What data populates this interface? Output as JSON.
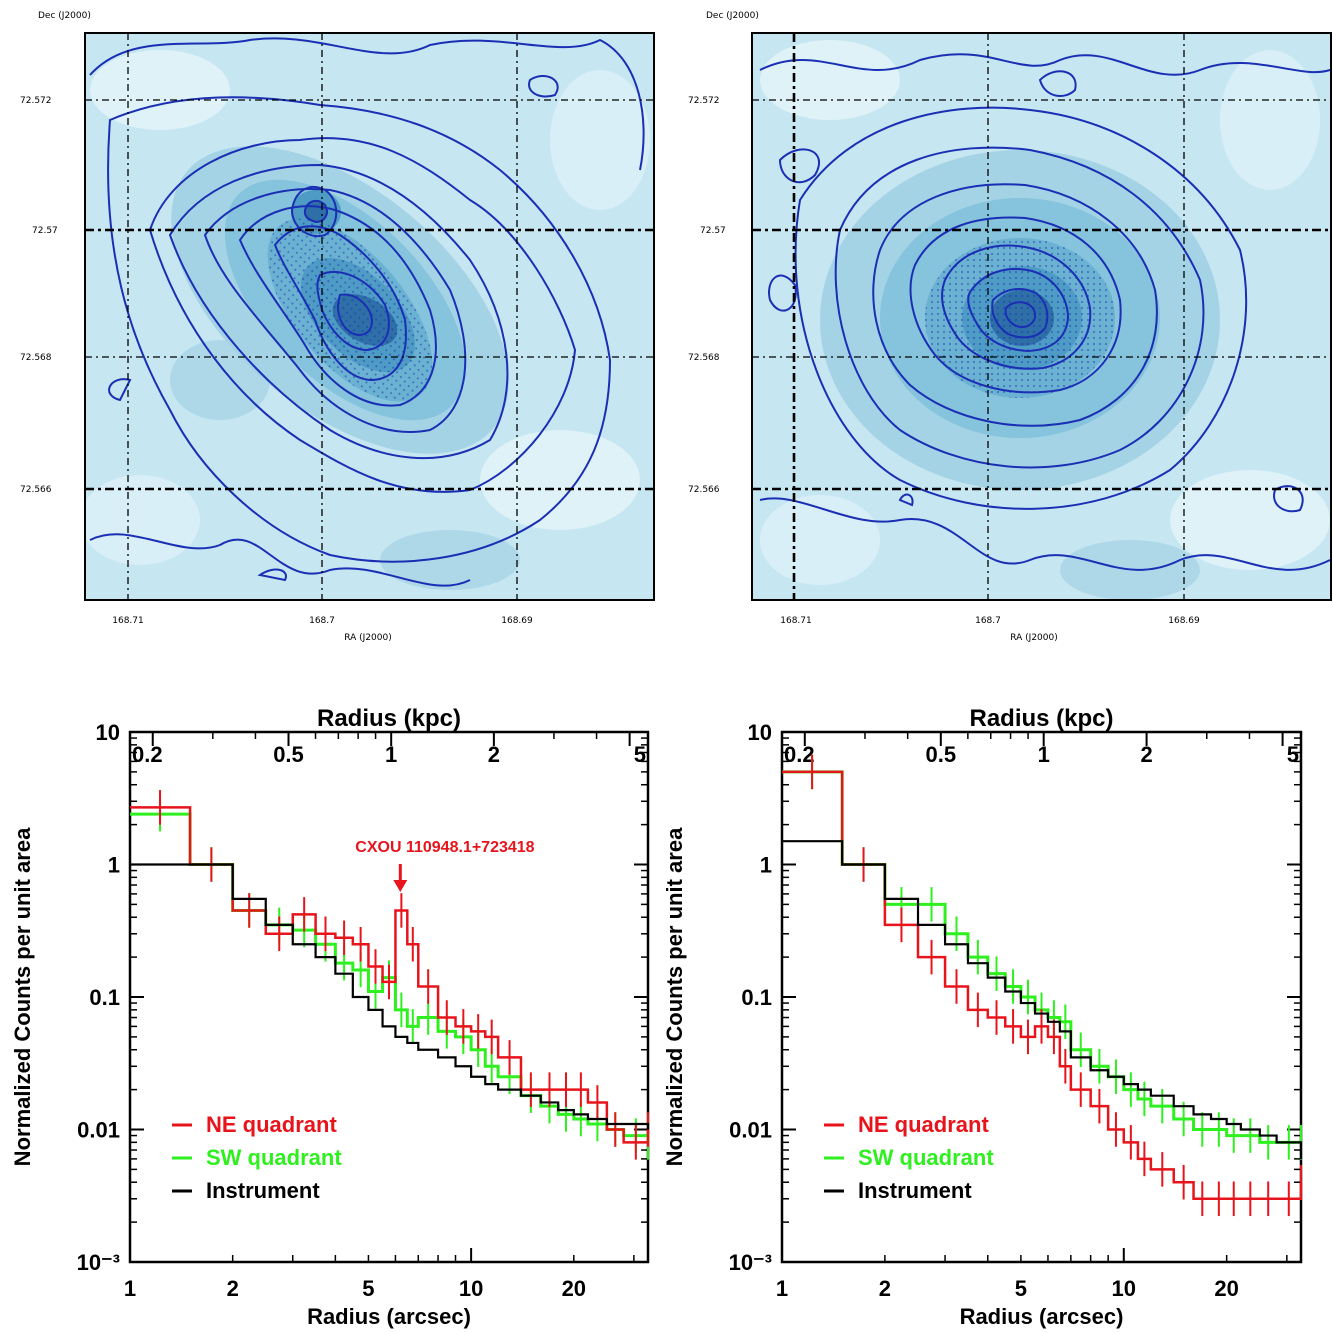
{
  "images": [
    {
      "id": "map-left",
      "dec_axis_label": "Dec (J2000)",
      "ra_axis_label": "RA (J2000)",
      "dec_ticks": [
        "72.572",
        "72.57",
        "72.568",
        "72.566"
      ],
      "ra_ticks": [
        "168.71",
        "168.7",
        "168.69"
      ]
    },
    {
      "id": "map-right",
      "dec_axis_label": "Dec (J2000)",
      "ra_axis_label": "RA (J2000)",
      "dec_ticks": [
        "72.572",
        "72.57",
        "72.568",
        "72.566"
      ],
      "ra_ticks": [
        "168.71",
        "168.7",
        "168.69"
      ]
    }
  ],
  "colors": {
    "map_bg": "#bfe3ef",
    "contour": "#1a2fb4",
    "ne": "#e8141c",
    "sw": "#2ef01f",
    "inst": "#000000"
  },
  "chart_data": [
    {
      "type": "line",
      "xlabel": "Radius (arcsec)",
      "ylabel": "Normalized Counts per unit area",
      "top_axis_label": "Radius (kpc)",
      "xscale": "log",
      "yscale": "log",
      "xlim": [
        1,
        33
      ],
      "ylim": [
        0.001,
        10
      ],
      "x_ticks": [
        "1",
        "2",
        "5",
        "10",
        "20"
      ],
      "y_ticks": [
        "10",
        "1",
        "0.1",
        "0.01",
        "10⁻³"
      ],
      "top_ticks": [
        "0.2",
        "0.5",
        "1",
        "2",
        "5"
      ],
      "annotation": "CXOU 110948.1+723418",
      "legend_position": "lower-left",
      "series": [
        {
          "name": "NE quadrant",
          "color": "#e8141c",
          "x": [
            1,
            1.5,
            2,
            2.5,
            3,
            3.5,
            4,
            4.5,
            5,
            5.5,
            6,
            6.5,
            7,
            8,
            9,
            10,
            11,
            12,
            14,
            16,
            18,
            20,
            22,
            25,
            28,
            33
          ],
          "y": [
            2.7,
            1.0,
            0.45,
            0.3,
            0.42,
            0.3,
            0.28,
            0.25,
            0.17,
            0.13,
            0.45,
            0.25,
            0.12,
            0.07,
            0.06,
            0.055,
            0.05,
            0.035,
            0.02,
            0.02,
            0.02,
            0.02,
            0.016,
            0.01,
            0.008,
            0.01
          ]
        },
        {
          "name": "SW quadrant",
          "color": "#2ef01f",
          "x": [
            1,
            1.5,
            2,
            2.5,
            3,
            3.5,
            4,
            4.5,
            5,
            5.5,
            6,
            6.5,
            7,
            8,
            9,
            10,
            11,
            12,
            14,
            16,
            18,
            20,
            22,
            25,
            28,
            33
          ],
          "y": [
            2.4,
            1.0,
            0.45,
            0.35,
            0.32,
            0.25,
            0.18,
            0.16,
            0.11,
            0.14,
            0.08,
            0.06,
            0.07,
            0.055,
            0.05,
            0.04,
            0.03,
            0.025,
            0.018,
            0.015,
            0.013,
            0.012,
            0.011,
            0.01,
            0.009,
            0.008
          ]
        },
        {
          "name": "Instrument",
          "color": "#000000",
          "x": [
            1,
            1.5,
            2,
            2.5,
            3,
            3.5,
            4,
            4.5,
            5,
            5.5,
            6,
            6.5,
            7,
            8,
            9,
            10,
            11,
            12,
            14,
            16,
            18,
            20,
            22,
            25,
            28,
            33
          ],
          "y": [
            1.0,
            1.0,
            0.55,
            0.35,
            0.25,
            0.2,
            0.15,
            0.1,
            0.08,
            0.06,
            0.05,
            0.045,
            0.04,
            0.035,
            0.03,
            0.025,
            0.022,
            0.02,
            0.018,
            0.016,
            0.014,
            0.013,
            0.012,
            0.011,
            0.011,
            0.01
          ]
        }
      ]
    },
    {
      "type": "line",
      "xlabel": "Radius (arcsec)",
      "ylabel": "Normalized Counts per unit area",
      "top_axis_label": "Radius (kpc)",
      "xscale": "log",
      "yscale": "log",
      "xlim": [
        1,
        33
      ],
      "ylim": [
        0.001,
        10
      ],
      "x_ticks": [
        "1",
        "2",
        "5",
        "10",
        "20"
      ],
      "y_ticks": [
        "10",
        "1",
        "0.1",
        "0.01",
        "10⁻³"
      ],
      "top_ticks": [
        "0.2",
        "0.5",
        "1",
        "2",
        "5"
      ],
      "legend_position": "lower-left",
      "series": [
        {
          "name": "NE quadrant",
          "color": "#e8141c",
          "x": [
            1,
            1.5,
            2,
            2.5,
            3,
            3.5,
            4,
            4.5,
            5,
            5.5,
            6,
            6.5,
            7,
            8,
            9,
            10,
            11,
            12,
            14,
            16,
            18,
            20,
            22,
            25,
            28,
            33
          ],
          "y": [
            5.0,
            1.0,
            0.35,
            0.2,
            0.12,
            0.08,
            0.07,
            0.06,
            0.05,
            0.06,
            0.05,
            0.03,
            0.02,
            0.015,
            0.01,
            0.008,
            0.006,
            0.005,
            0.004,
            0.003,
            0.003,
            0.003,
            0.003,
            0.003,
            0.003,
            0.004
          ]
        },
        {
          "name": "SW quadrant",
          "color": "#2ef01f",
          "x": [
            1,
            1.5,
            2,
            2.5,
            3,
            3.5,
            4,
            4.5,
            5,
            5.5,
            6,
            6.5,
            7,
            8,
            9,
            10,
            11,
            12,
            14,
            16,
            18,
            20,
            22,
            25,
            28,
            33
          ],
          "y": [
            5.0,
            1.0,
            0.5,
            0.5,
            0.3,
            0.2,
            0.15,
            0.12,
            0.1,
            0.08,
            0.07,
            0.065,
            0.04,
            0.03,
            0.025,
            0.02,
            0.017,
            0.015,
            0.012,
            0.01,
            0.01,
            0.009,
            0.009,
            0.008,
            0.008,
            0.008
          ]
        },
        {
          "name": "Instrument",
          "color": "#000000",
          "x": [
            1,
            1.5,
            2,
            2.5,
            3,
            3.5,
            4,
            4.5,
            5,
            5.5,
            6,
            6.5,
            7,
            8,
            9,
            10,
            11,
            12,
            14,
            16,
            18,
            20,
            22,
            25,
            28,
            33
          ],
          "y": [
            1.5,
            1.0,
            0.55,
            0.35,
            0.25,
            0.18,
            0.14,
            0.11,
            0.09,
            0.075,
            0.065,
            0.055,
            0.035,
            0.028,
            0.025,
            0.022,
            0.02,
            0.018,
            0.015,
            0.013,
            0.012,
            0.011,
            0.01,
            0.009,
            0.008,
            0.006
          ]
        }
      ]
    }
  ]
}
